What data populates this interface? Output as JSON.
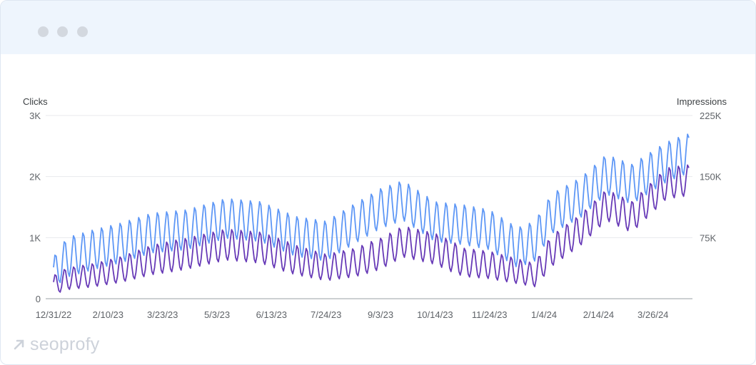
{
  "window": {
    "buttons": [
      "close-dot",
      "minimize-dot",
      "maximize-dot"
    ],
    "dot_color": "#d3d8df",
    "titlebar_color": "#eef5fd"
  },
  "brand": {
    "logo_text": "seoprofy",
    "icon": "arrow-up-right-icon"
  },
  "chart_data": {
    "type": "line",
    "left_axis_title": "Clicks",
    "right_axis_title": "Impressions",
    "left_ticks": [
      "3K",
      "2K",
      "1K",
      "0"
    ],
    "left_tick_values": [
      3000,
      2000,
      1000,
      0
    ],
    "right_ticks": [
      "225K",
      "150K",
      "75K"
    ],
    "right_tick_values": [
      225000,
      150000,
      75000
    ],
    "ylim_left": [
      0,
      3000
    ],
    "ylim_right": [
      0,
      225000
    ],
    "x_tick_labels": [
      "12/31/22",
      "2/10/23",
      "3/23/23",
      "5/3/23",
      "6/13/23",
      "7/24/23",
      "9/3/23",
      "10/14/23",
      "11/24/23",
      "1/4/24",
      "2/14/24",
      "3/26/24"
    ],
    "x_range": [
      "2022-12-31",
      "2024-04-22"
    ],
    "grid": true,
    "series": [
      {
        "axis": "right",
        "color": "#5e97f6",
        "weekly_cycle": true,
        "trend_points": [
          [
            "2022-12-31",
            30000
          ],
          [
            "2023-01-10",
            48000
          ],
          [
            "2023-01-31",
            58000
          ],
          [
            "2023-02-20",
            66000
          ],
          [
            "2023-03-15",
            78000
          ],
          [
            "2023-04-10",
            82000
          ],
          [
            "2023-05-10",
            96000
          ],
          [
            "2023-06-05",
            92000
          ],
          [
            "2023-07-01",
            74000
          ],
          [
            "2023-07-24",
            68000
          ],
          [
            "2023-08-15",
            90000
          ],
          [
            "2023-09-03",
            108000
          ],
          [
            "2023-09-20",
            118000
          ],
          [
            "2023-10-14",
            92000
          ],
          [
            "2023-11-05",
            88000
          ],
          [
            "2023-11-24",
            82000
          ],
          [
            "2023-12-15",
            60000
          ],
          [
            "2023-12-28",
            68000
          ],
          [
            "2024-01-10",
            102000
          ],
          [
            "2024-02-01",
            122000
          ],
          [
            "2024-02-20",
            150000
          ],
          [
            "2024-03-10",
            138000
          ],
          [
            "2024-04-05",
            165000
          ],
          [
            "2024-04-20",
            175000
          ]
        ],
        "weekly_peak_above_trend": 28000,
        "weekly_trough_below_trend": 22000
      },
      {
        "axis": "left",
        "color": "#673ab7",
        "weekly_cycle": true,
        "trend_points": [
          [
            "2022-12-31",
            200
          ],
          [
            "2023-01-10",
            300
          ],
          [
            "2023-01-31",
            360
          ],
          [
            "2023-02-20",
            450
          ],
          [
            "2023-03-15",
            600
          ],
          [
            "2023-04-10",
            700
          ],
          [
            "2023-05-10",
            850
          ],
          [
            "2023-06-05",
            800
          ],
          [
            "2023-07-01",
            600
          ],
          [
            "2023-07-24",
            480
          ],
          [
            "2023-08-15",
            560
          ],
          [
            "2023-09-03",
            700
          ],
          [
            "2023-09-20",
            900
          ],
          [
            "2023-10-14",
            780
          ],
          [
            "2023-11-05",
            560
          ],
          [
            "2023-11-24",
            520
          ],
          [
            "2023-12-15",
            420
          ],
          [
            "2023-12-28",
            360
          ],
          [
            "2024-01-10",
            750
          ],
          [
            "2024-02-01",
            1100
          ],
          [
            "2024-02-20",
            1500
          ],
          [
            "2024-03-10",
            1300
          ],
          [
            "2024-04-05",
            1850
          ],
          [
            "2024-04-20",
            1900
          ]
        ],
        "weekly_peak_above_trend": 300,
        "weekly_trough_below_trend": 220
      }
    ]
  }
}
